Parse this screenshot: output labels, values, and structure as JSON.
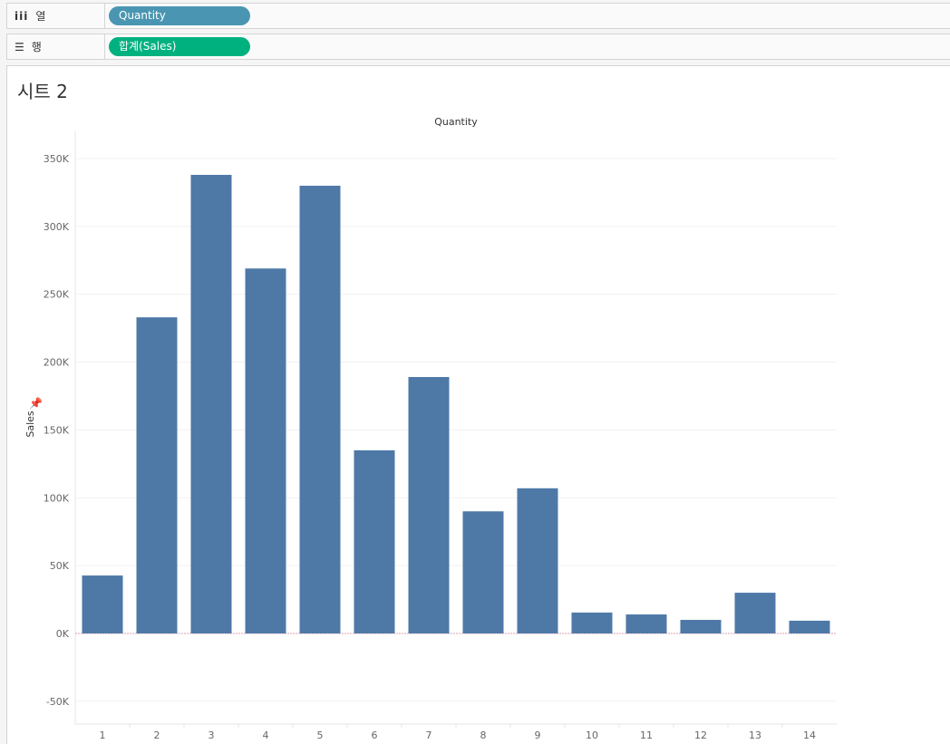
{
  "shelves": {
    "columns": {
      "icon": "columns-icon",
      "label": "열",
      "pill": "Quantity",
      "pill_color": "#4a96b2"
    },
    "rows": {
      "icon": "rows-icon",
      "label": "행",
      "pill": "합계(Sales)",
      "pill_color": "#00b180"
    }
  },
  "sheet_title": "시트 2",
  "chart_data": {
    "type": "bar",
    "title": "Quantity",
    "xlabel": "",
    "ylabel": "Sales",
    "categories": [
      "1",
      "2",
      "3",
      "4",
      "5",
      "6",
      "7",
      "8",
      "9",
      "10",
      "11",
      "12",
      "13",
      "14"
    ],
    "values": [
      42700,
      233000,
      338000,
      269000,
      330000,
      135000,
      189000,
      90000,
      107000,
      15400,
      14000,
      10000,
      30000,
      9400
    ],
    "ylim": [
      -66000,
      360000
    ],
    "yticks": [
      -50000,
      0,
      50000,
      100000,
      150000,
      200000,
      250000,
      300000,
      350000
    ],
    "ytick_labels": [
      "-50K",
      "0K",
      "50K",
      "100K",
      "150K",
      "200K",
      "250K",
      "300K",
      "350K"
    ],
    "bar_color": "#4e79a7",
    "grid": true
  }
}
